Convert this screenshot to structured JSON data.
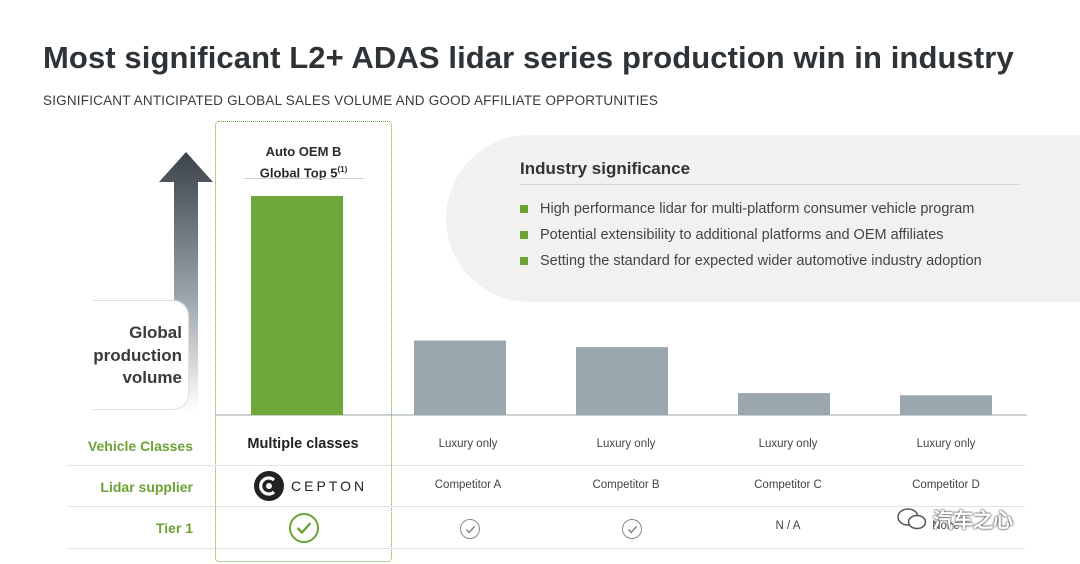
{
  "title": "Most significant L2+ ADAS lidar series production win in industry",
  "subtitle": "SIGNIFICANT ANTICIPATED GLOBAL SALES VOLUME AND GOOD AFFILIATE OPPORTUNITIES",
  "significance": {
    "title": "Industry significance",
    "items": [
      "High performance lidar for multi-platform consumer vehicle program",
      "Potential extensibility to additional platforms and OEM affiliates",
      "Setting the standard for expected wider automotive industry adoption"
    ]
  },
  "axis_label_lines": [
    "Global",
    "production",
    "volume"
  ],
  "oem": {
    "line1": "Auto OEM B",
    "line2": "Global Top 5",
    "footnote": "(1)"
  },
  "logo_text": "CEPTON",
  "watermark": "汽车之心",
  "colors": {
    "accent": "#6aa334",
    "bar_primary": "#6ea73a",
    "bar_other": "#9aa7ae",
    "axis_arrow": "#3b4249"
  },
  "chart_data": {
    "type": "bar",
    "title": "",
    "xlabel": "",
    "ylabel": "Global production volume",
    "categories": [
      "Auto OEM B",
      "Competitor A",
      "Competitor B",
      "Competitor C",
      "Competitor D"
    ],
    "values": [
      100,
      34,
      31,
      10,
      9
    ],
    "ylim": [
      0,
      100
    ],
    "grid": false
  },
  "table": {
    "rows": [
      {
        "label": "Vehicle Classes",
        "cells": [
          "Multiple classes",
          "Luxury only",
          "Luxury only",
          "Luxury only",
          "Luxury only"
        ]
      },
      {
        "label": "Lidar supplier",
        "cells": [
          "",
          "Competitor A",
          "Competitor B",
          "Competitor C",
          "Competitor D"
        ]
      },
      {
        "label": "Tier 1",
        "cells": [
          "check",
          "check",
          "check",
          "N / A",
          "None"
        ]
      }
    ]
  }
}
